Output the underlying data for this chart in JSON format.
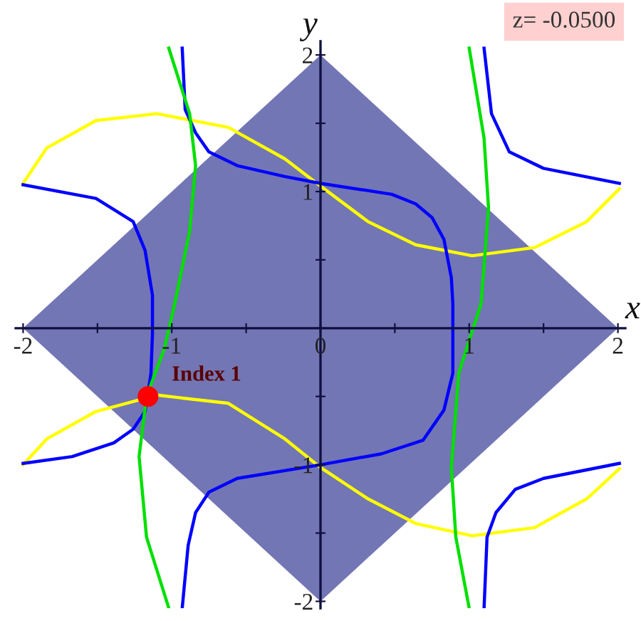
{
  "chart_data": {
    "type": "line",
    "xlabel": "x",
    "ylabel": "y",
    "xlim": [
      -2.05,
      2.05
    ],
    "ylim": [
      -2.05,
      2.1
    ],
    "xticks": [
      -2,
      {
        "value": -1.5,
        "label": null
      },
      -1,
      {
        "value": -0.5,
        "label": null
      },
      0,
      {
        "value": 0.5,
        "label": null
      },
      1,
      {
        "value": 1.5,
        "label": null
      },
      2
    ],
    "yticks": [
      -2,
      {
        "value": -1.5,
        "label": null
      },
      -1,
      {
        "value": -0.5,
        "label": null
      },
      {
        "value": 0,
        "label": null
      },
      {
        "value": 0.5,
        "label": null
      },
      1,
      {
        "value": 1.5,
        "label": null
      },
      2
    ],
    "grid": false,
    "series": [
      {
        "type": "area",
        "color": "#7376b4",
        "x": [
          -2,
          0,
          2,
          0,
          -2
        ],
        "values": [
          0,
          2,
          0,
          -2,
          0
        ]
      },
      {
        "color": "#ffff00",
        "x": [
          -2.0,
          -1.84,
          -1.51,
          -1.1,
          -0.62,
          -0.24,
          0,
          0.32,
          0.64,
          1.02,
          1.44,
          1.79,
          2.01
        ],
        "values": [
          1.06,
          1.32,
          1.52,
          1.57,
          1.47,
          1.24,
          1.04,
          0.78,
          0.61,
          0.53,
          0.59,
          0.78,
          1.02
        ]
      },
      {
        "color": "#ffff00",
        "x": [
          -2.0,
          -1.84,
          -1.51,
          -1.1,
          -0.62,
          -0.24,
          0,
          0.32,
          0.64,
          1.02,
          1.44,
          1.79,
          2.01
        ],
        "values": [
          -1.0,
          -0.81,
          -0.61,
          -0.49,
          -0.55,
          -0.81,
          -1.02,
          -1.25,
          -1.43,
          -1.52,
          -1.46,
          -1.25,
          -1.03
        ]
      },
      {
        "color": "#0000ff",
        "x": [
          -2.0,
          -1.51,
          -1.26,
          -1.18,
          -1.13,
          -1.13,
          -1.14,
          -1.18,
          -1.26,
          -1.39,
          -1.67,
          -2.0
        ],
        "values": [
          1.05,
          0.95,
          0.78,
          0.57,
          0.24,
          -0.04,
          -0.33,
          -0.61,
          -0.74,
          -0.84,
          -0.94,
          -0.99
        ]
      },
      {
        "color": "#0000ff",
        "x": [
          -0.93,
          -0.91,
          -0.84,
          -0.75,
          -0.56,
          -0.24,
          0,
          0.48,
          0.64,
          0.75,
          0.83,
          0.88,
          0.89,
          0.89,
          0.83,
          0.69,
          0.41,
          0,
          -0.56,
          -0.75,
          -0.84,
          -0.89,
          -0.93
        ],
        "values": [
          2.05,
          1.6,
          1.43,
          1.29,
          1.19,
          1.11,
          1.06,
          0.98,
          0.91,
          0.81,
          0.65,
          0.37,
          0.18,
          -0.33,
          -0.6,
          -0.82,
          -0.92,
          -1.0,
          -1.1,
          -1.2,
          -1.35,
          -1.59,
          -2.05
        ]
      },
      {
        "color": "#0000ff",
        "x": [
          1.1,
          1.15,
          1.27,
          1.5,
          2.01
        ],
        "values": [
          2.05,
          1.57,
          1.29,
          1.17,
          1.06
        ]
      },
      {
        "color": "#0000ff",
        "x": [
          1.1,
          1.12,
          1.18,
          1.31,
          1.5,
          2.01
        ],
        "values": [
          -2.05,
          -1.53,
          -1.35,
          -1.18,
          -1.1,
          -0.99
        ]
      },
      {
        "color": "#00e000",
        "x": [
          -1.02,
          -0.88,
          -0.84,
          -0.88,
          -0.98,
          -1.05,
          -1.17,
          -1.22,
          -1.17,
          -1.02
        ],
        "values": [
          2.05,
          1.57,
          1.19,
          0.71,
          0.18,
          -0.15,
          -0.5,
          -0.94,
          -1.53,
          -2.05
        ]
      },
      {
        "color": "#00e000",
        "x": [
          1.0,
          1.1,
          1.13,
          1.08,
          0.93,
          0.88,
          0.91,
          1.0
        ],
        "values": [
          2.05,
          1.39,
          0.88,
          0.18,
          -0.33,
          -1.02,
          -1.53,
          -2.05
        ]
      },
      {
        "type": "scatter",
        "marker": "circle",
        "color": "#ff0000",
        "x": [
          -1.16
        ],
        "values": [
          -0.5
        ]
      }
    ],
    "annotations": [
      {
        "text": "Index 1",
        "x": -1.16,
        "y": -0.5
      },
      "z= -0.0500"
    ]
  }
}
